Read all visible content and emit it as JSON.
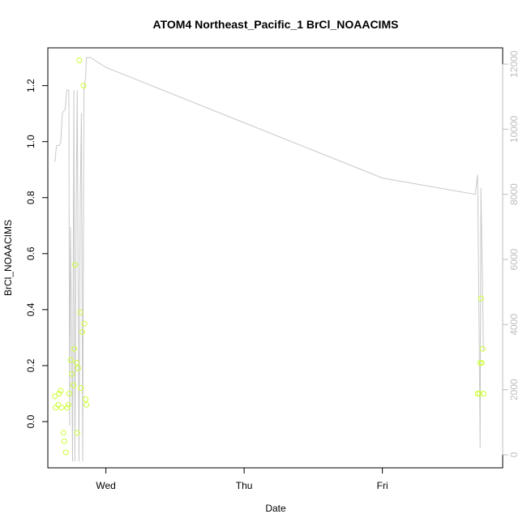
{
  "chart_data": {
    "type": "scatter",
    "title": "ATOM4 Northeast_Pacific_1 BrCl_NOAACIMS",
    "xlabel": "Date",
    "ylabel": "BrCl_NOAACIMS",
    "x_ticks": [
      {
        "label": "Wed",
        "value": 0
      },
      {
        "label": "Thu",
        "value": 1
      },
      {
        "label": "Fri",
        "value": 2
      }
    ],
    "xlim": [
      -0.42,
      2.87
    ],
    "ylim": [
      -0.165,
      1.335
    ],
    "y_ticks": [
      "0.0",
      "0.2",
      "0.4",
      "0.6",
      "0.8",
      "1.0",
      "1.2"
    ],
    "y_tick_values": [
      0.0,
      0.2,
      0.4,
      0.6,
      0.8,
      1.0,
      1.2
    ],
    "y2_ticks": [
      "0",
      "2000",
      "4000",
      "6000",
      "8000",
      "10000",
      "12000"
    ],
    "y2_tick_values": [
      0,
      2000,
      4000,
      6000,
      8000,
      10000,
      12000
    ],
    "y2lim": [
      -400,
      12500
    ],
    "grid": false,
    "series": [
      {
        "type": "scatter",
        "color": "#ccff33",
        "points": [
          {
            "x": -0.369,
            "y": 0.09
          },
          {
            "x": -0.363,
            "y": 0.05
          },
          {
            "x": -0.345,
            "y": 0.06
          },
          {
            "x": -0.339,
            "y": 0.1
          },
          {
            "x": -0.327,
            "y": 0.11
          },
          {
            "x": -0.32,
            "y": 0.05
          },
          {
            "x": -0.307,
            "y": -0.04
          },
          {
            "x": -0.301,
            "y": -0.07
          },
          {
            "x": -0.29,
            "y": -0.11
          },
          {
            "x": -0.28,
            "y": 0.05
          },
          {
            "x": -0.271,
            "y": 0.06
          },
          {
            "x": -0.265,
            "y": 0.1
          },
          {
            "x": -0.254,
            "y": 0.22
          },
          {
            "x": -0.246,
            "y": 0.17
          },
          {
            "x": -0.235,
            "y": 0.13
          },
          {
            "x": -0.229,
            "y": 0.26
          },
          {
            "x": -0.223,
            "y": 0.56
          },
          {
            "x": -0.213,
            "y": 0.21
          },
          {
            "x": -0.207,
            "y": -0.04
          },
          {
            "x": -0.201,
            "y": 0.19
          },
          {
            "x": -0.192,
            "y": 1.29
          },
          {
            "x": -0.186,
            "y": 0.39
          },
          {
            "x": -0.18,
            "y": 0.12
          },
          {
            "x": -0.171,
            "y": 0.32
          },
          {
            "x": -0.162,
            "y": 1.2
          },
          {
            "x": -0.156,
            "y": 0.35
          },
          {
            "x": -0.147,
            "y": 0.08
          },
          {
            "x": -0.141,
            "y": 0.06
          },
          {
            "x": 2.689,
            "y": 0.1
          },
          {
            "x": 2.701,
            "y": 0.1
          },
          {
            "x": 2.707,
            "y": 0.21
          },
          {
            "x": 2.713,
            "y": 0.44
          },
          {
            "x": 2.719,
            "y": 0.21
          },
          {
            "x": 2.725,
            "y": 0.26
          },
          {
            "x": 2.731,
            "y": 0.1
          }
        ]
      },
      {
        "type": "line",
        "axis": "right",
        "color": "#c8c8c8",
        "points": [
          {
            "x": -0.369,
            "y": 9000
          },
          {
            "x": -0.357,
            "y": 9500
          },
          {
            "x": -0.339,
            "y": 9500
          },
          {
            "x": -0.327,
            "y": 9600
          },
          {
            "x": -0.315,
            "y": 10500
          },
          {
            "x": -0.295,
            "y": 10600
          },
          {
            "x": -0.283,
            "y": 11200
          },
          {
            "x": -0.268,
            "y": 11200
          },
          {
            "x": -0.262,
            "y": 900
          },
          {
            "x": -0.256,
            "y": 7000
          },
          {
            "x": -0.247,
            "y": 3000
          },
          {
            "x": -0.241,
            "y": -200
          },
          {
            "x": -0.232,
            "y": 11200
          },
          {
            "x": -0.224,
            "y": -200
          },
          {
            "x": -0.215,
            "y": 7800
          },
          {
            "x": -0.207,
            "y": 11200
          },
          {
            "x": -0.195,
            "y": -200
          },
          {
            "x": -0.186,
            "y": 7600
          },
          {
            "x": -0.177,
            "y": 10500
          },
          {
            "x": -0.168,
            "y": -200
          },
          {
            "x": -0.159,
            "y": 11200
          },
          {
            "x": -0.147,
            "y": 11600
          },
          {
            "x": -0.141,
            "y": 12200
          },
          {
            "x": -0.111,
            "y": 12200
          },
          {
            "x": 0.0,
            "y": 11900
          },
          {
            "x": 1.0,
            "y": 10200
          },
          {
            "x": 2.0,
            "y": 8500
          },
          {
            "x": 2.671,
            "y": 8000
          },
          {
            "x": 2.689,
            "y": 8600
          },
          {
            "x": 2.701,
            "y": 3200
          },
          {
            "x": 2.707,
            "y": 200
          },
          {
            "x": 2.713,
            "y": 8200
          },
          {
            "x": 2.731,
            "y": 3200
          }
        ]
      }
    ]
  }
}
